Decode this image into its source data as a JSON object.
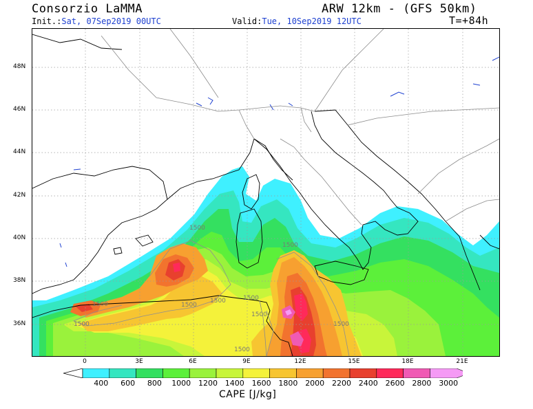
{
  "header": {
    "org": "Consorzio LaMMA",
    "model": "ARW 12km - (GFS 50km)",
    "init_label": "Init.:",
    "init_value": "Sat, 07Sep2019 00UTC",
    "valid_label": "Valid:",
    "valid_value": "Tue, 10Sep2019 12UTC",
    "lead": "T=+84h"
  },
  "map": {
    "lat_labels": [
      "48N",
      "46N",
      "44N",
      "42N",
      "40N",
      "38N",
      "36N"
    ],
    "lon_labels": [
      "0",
      "3E",
      "6E",
      "9E",
      "12E",
      "15E",
      "18E",
      "21E"
    ],
    "contour_labels": [
      "1500",
      "1500",
      "1500",
      "1500",
      "1500",
      "1500",
      "1500",
      "1500",
      "1500",
      "1500"
    ]
  },
  "colorbar": {
    "title": "CAPE [J/kg]",
    "ticks": [
      "400",
      "600",
      "800",
      "1000",
      "1200",
      "1400",
      "1600",
      "1800",
      "2000",
      "2200",
      "2400",
      "2600",
      "2800",
      "3000"
    ],
    "colors": [
      "#3ff0ff",
      "#35e6c0",
      "#34e060",
      "#5cf03a",
      "#9af23c",
      "#c8f53a",
      "#f4f23a",
      "#f7c531",
      "#f7a030",
      "#f2732e",
      "#e8402e",
      "#ff2a5a",
      "#f05ab4",
      "#f59af5"
    ]
  }
}
